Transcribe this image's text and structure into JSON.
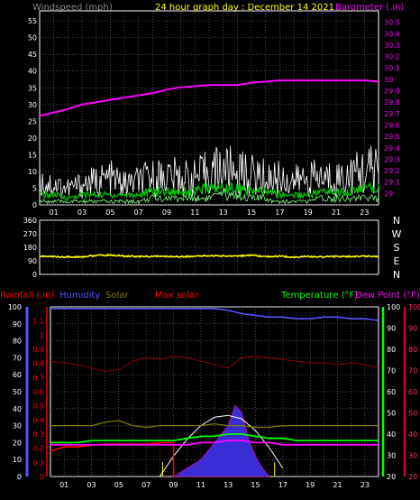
{
  "header": {
    "wind_label": "Windspeed (mph)",
    "title": "24 hour graph day : December 14 2021",
    "baro_label": "Barometer (.in)"
  },
  "colors": {
    "wind": "#ffffff",
    "wind_avg": "#00cc00",
    "wind_low": "#80ff80",
    "baro": "#ff00ff",
    "direction": "#ffff00",
    "rain": "#ff0000",
    "humidity": "#5555ff",
    "solar": "#808000",
    "max_solar": "#880000",
    "temperature": "#00ff00",
    "dew_point": "#ff00ff",
    "grid": "#7a7a7a",
    "axis_white": "#ffffff",
    "title_yellow": "#ffff00"
  },
  "x_hour_labels": [
    "01",
    "03",
    "05",
    "07",
    "09",
    "11",
    "13",
    "15",
    "17",
    "19",
    "21",
    "23"
  ],
  "chart_data": [
    {
      "type": "line",
      "id": "wind-baro",
      "x_hours": [
        0,
        1,
        2,
        3,
        4,
        5,
        6,
        7,
        8,
        9,
        10,
        11,
        12,
        13,
        14,
        15,
        16,
        17,
        18,
        19,
        20,
        21,
        22,
        23,
        24
      ],
      "ylim_left": [
        0,
        58
      ],
      "yticks_left": [
        0,
        5,
        10,
        15,
        20,
        25,
        30,
        35,
        40,
        45,
        50,
        55
      ],
      "ylim_right": [
        28.9,
        30.6
      ],
      "yticks_right": [
        "29",
        "29.1",
        "29.2",
        "29.3",
        "29.4",
        "29.5",
        "29.6",
        "29.7",
        "29.8",
        "29.9",
        "30",
        "30.1",
        "30.2",
        "30.3",
        "30.4",
        "30.5"
      ],
      "series": [
        {
          "key": "gust",
          "axis": "left",
          "values": [
            7,
            6,
            5,
            6,
            7,
            8,
            6,
            7,
            8,
            9,
            8,
            8,
            10,
            11,
            10,
            9,
            8,
            8,
            7,
            8,
            8,
            8,
            9,
            10,
            11
          ]
        },
        {
          "key": "avg",
          "axis": "left",
          "values": [
            3,
            3,
            2,
            3,
            3,
            3,
            3,
            3,
            4,
            4,
            4,
            4,
            5,
            5,
            5,
            4,
            4,
            3,
            3,
            3,
            4,
            4,
            4,
            5,
            5
          ]
        },
        {
          "key": "low",
          "axis": "left",
          "values": [
            1,
            1,
            1,
            1,
            1,
            1,
            1,
            1,
            2,
            2,
            2,
            2,
            2,
            3,
            3,
            2,
            2,
            1,
            1,
            1,
            2,
            2,
            2,
            2,
            2
          ]
        },
        {
          "key": "baro",
          "axis": "right",
          "values": [
            29.68,
            29.71,
            29.74,
            29.78,
            29.8,
            29.82,
            29.84,
            29.86,
            29.88,
            29.91,
            29.93,
            29.94,
            29.95,
            29.95,
            29.95,
            29.97,
            29.98,
            29.99,
            29.99,
            29.99,
            29.99,
            29.99,
            29.99,
            29.99,
            29.98
          ]
        }
      ]
    },
    {
      "type": "line",
      "id": "wind-direction",
      "x_hours": [
        0,
        1,
        2,
        3,
        4,
        5,
        6,
        7,
        8,
        9,
        10,
        11,
        12,
        13,
        14,
        15,
        16,
        17,
        18,
        19,
        20,
        21,
        22,
        23,
        24
      ],
      "ylim": [
        0,
        360
      ],
      "yticks": [
        0,
        90,
        180,
        270,
        360
      ],
      "ytick_labels": [
        "0",
        "90",
        "180",
        "270",
        "360"
      ],
      "compass_labels": [
        "N",
        "W",
        "S",
        "E",
        "N"
      ],
      "series": [
        {
          "key": "direction",
          "values": [
            120,
            118,
            115,
            117,
            125,
            128,
            122,
            118,
            120,
            119,
            118,
            120,
            124,
            122,
            123,
            125,
            118,
            120,
            115,
            118,
            117,
            119,
            118,
            120,
            119
          ]
        }
      ]
    },
    {
      "type": "line",
      "id": "rain-temp",
      "x_hours": [
        0,
        1,
        2,
        3,
        4,
        5,
        6,
        7,
        8,
        9,
        10,
        11,
        12,
        13,
        14,
        15,
        16,
        17,
        18,
        19,
        20,
        21,
        22,
        23,
        24
      ],
      "legend": {
        "rain": "Rainfall (.in)",
        "humidity": "Humidity",
        "solar": "Solar",
        "max_solar": "Max solar",
        "temperature": "Temperature (°F)",
        "dew_point": "Dew Point (°F)"
      },
      "y_rain_ticks": [
        "0",
        "0.1",
        "0.2",
        "0.3",
        "0.4",
        "0.5",
        "0.6",
        "0.7",
        "0.8",
        "0.9",
        "1",
        "1.1"
      ],
      "y_humidity_ticks": [
        "0",
        "10",
        "20",
        "30",
        "40",
        "50",
        "60",
        "70",
        "80",
        "90",
        "100"
      ],
      "y_temp_ticks": [
        "20",
        "30",
        "40",
        "50",
        "60",
        "70",
        "80",
        "90",
        "100"
      ],
      "temp_range": [
        20,
        100
      ],
      "humidity_range": [
        0,
        100
      ],
      "rain_range": [
        0,
        1.2
      ],
      "series": [
        {
          "key": "humidity",
          "axis": "humidity",
          "values": [
            99,
            99,
            99,
            99,
            99,
            99,
            99,
            99,
            99,
            99,
            99,
            99,
            99,
            98,
            96,
            95,
            94,
            94,
            93,
            93,
            94,
            94,
            93,
            93,
            92
          ]
        },
        {
          "key": "max_solar_line",
          "axis": "humidity",
          "values": [
            68,
            67,
            66,
            64,
            62,
            63,
            68,
            70,
            69,
            71,
            70,
            68,
            66,
            64,
            70,
            71,
            70,
            69,
            68,
            67,
            67,
            66,
            67,
            66,
            64
          ]
        },
        {
          "key": "solar_line",
          "axis": "humidity",
          "values": [
            30,
            30,
            30,
            30,
            32,
            33,
            30,
            29,
            30,
            30,
            30,
            30,
            31,
            30,
            30,
            29,
            29,
            30,
            30,
            30,
            30,
            30,
            30,
            30,
            30
          ]
        },
        {
          "key": "rain",
          "axis": "rain",
          "values": [
            0.18,
            0.21,
            0.21,
            0.22,
            0.23,
            0.23,
            0.23,
            0.23,
            0.24,
            0.24,
            0.24,
            0.24,
            0.24,
            0.24,
            0.24,
            0.24,
            0.24,
            0.24,
            0.24,
            0.24,
            0.24,
            0.24,
            0.24,
            0.24,
            0.24
          ]
        },
        {
          "key": "temperature",
          "axis": "temp",
          "values": [
            36,
            36,
            36,
            37,
            37,
            37,
            37,
            37,
            37,
            37,
            38,
            39,
            39,
            40,
            40,
            39,
            38,
            38,
            37,
            37,
            37,
            37,
            37,
            37,
            37
          ]
        },
        {
          "key": "dew_point",
          "axis": "temp",
          "values": [
            35,
            35,
            35,
            35,
            35,
            35,
            35,
            35,
            35,
            35,
            35,
            36,
            36,
            37,
            37,
            36,
            36,
            35,
            35,
            35,
            35,
            35,
            35,
            35,
            35
          ]
        }
      ],
      "solar_fill": {
        "x_hours": [
          9,
          10,
          11,
          12,
          12.5,
          13,
          13.5,
          14,
          14.5,
          15,
          15.5,
          16
        ],
        "values": [
          0,
          5,
          10,
          20,
          25,
          30,
          42,
          38,
          22,
          12,
          5,
          0
        ]
      },
      "max_solar_curve": {
        "x_hours": [
          8,
          9,
          10,
          11,
          12,
          13,
          14,
          15,
          16,
          17
        ],
        "values": [
          0,
          12,
          22,
          30,
          35,
          36,
          34,
          27,
          17,
          5
        ]
      }
    }
  ]
}
